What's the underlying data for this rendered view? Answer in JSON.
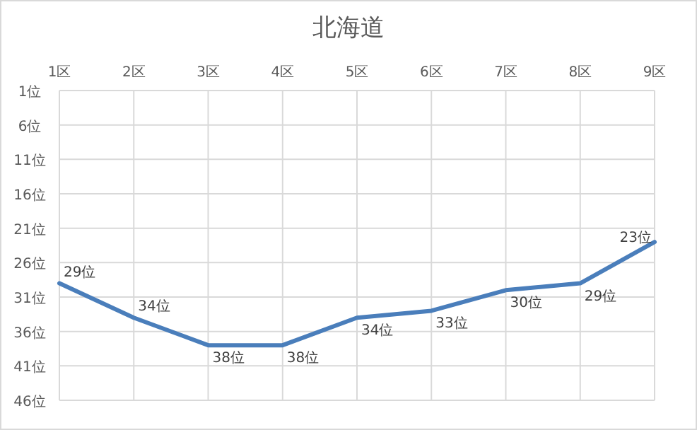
{
  "chart_data": {
    "type": "line",
    "title": "北海道",
    "categories": [
      "1区",
      "2区",
      "3区",
      "4区",
      "5区",
      "6区",
      "7区",
      "8区",
      "9区"
    ],
    "values": [
      29,
      34,
      38,
      38,
      34,
      33,
      30,
      29,
      23
    ],
    "value_labels": [
      "29位",
      "34位",
      "38位",
      "38位",
      "34位",
      "33位",
      "30位",
      "29位",
      "23位"
    ],
    "color": "#4a7ebb",
    "ylim": [
      46,
      1
    ],
    "yticks": [
      {
        "value": 1,
        "label": "1位"
      },
      {
        "value": 6,
        "label": "6位"
      },
      {
        "value": 11,
        "label": "11位"
      },
      {
        "value": 16,
        "label": "16位"
      },
      {
        "value": 21,
        "label": "21位"
      },
      {
        "value": 26,
        "label": "26位"
      },
      {
        "value": 31,
        "label": "31位"
      },
      {
        "value": 36,
        "label": "36位"
      },
      {
        "value": 41,
        "label": "41位"
      },
      {
        "value": 46,
        "label": "46位"
      }
    ],
    "grid": true,
    "marker": "none",
    "line_style": "solid"
  }
}
